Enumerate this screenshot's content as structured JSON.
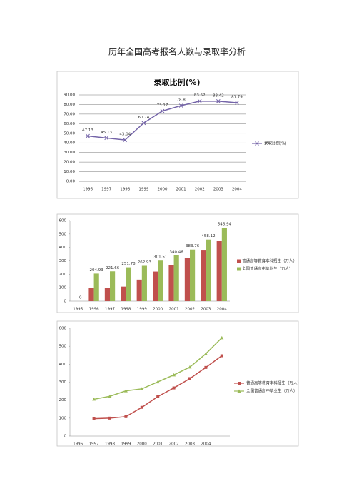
{
  "title": "历年全国高考报名人数与录取率分析",
  "chart_data": [
    {
      "type": "line",
      "title": "录取比例(%)",
      "legend": "right",
      "categories": [
        "1996",
        "1997",
        "1998",
        "1999",
        "2000",
        "2001",
        "2002",
        "2003",
        "2004"
      ],
      "series": [
        {
          "name": "录取比例(%)",
          "color": "#7464a8",
          "marker": "x",
          "labels": true,
          "values": [
            47.13,
            45.13,
            43.04,
            60.74,
            73.17,
            78.8,
            83.52,
            83.42,
            81.79
          ]
        }
      ],
      "ylim": [
        0,
        90
      ],
      "grid": true,
      "yticks": [
        {
          "value": 0,
          "label": "0.00"
        },
        {
          "value": 10,
          "label": "10.00"
        },
        {
          "value": 20,
          "label": "20.00"
        },
        {
          "value": 30,
          "label": "30.00"
        },
        {
          "value": 40,
          "label": "40.00"
        },
        {
          "value": 50,
          "label": "50.00"
        },
        {
          "value": 60,
          "label": "60.00"
        },
        {
          "value": 70,
          "label": "70.00"
        },
        {
          "value": 80,
          "label": "80.00"
        },
        {
          "value": 90,
          "label": "90.00"
        }
      ]
    },
    {
      "type": "bar",
      "legend": "right",
      "categories": [
        "1995",
        "1996",
        "1997",
        "1998",
        "1999",
        "2000",
        "2001",
        "2002",
        "2003",
        "2004"
      ],
      "series": [
        {
          "name": "普通高等教育本科招生（万人）",
          "color": "#c0504d",
          "values": [
            null,
            97,
            100,
            108,
            160,
            220,
            268,
            320,
            382,
            447
          ]
        },
        {
          "name": "全国普通高中毕业生（万人）",
          "color": "#9bbb59",
          "labels": true,
          "values": [
            0,
            204.93,
            221.66,
            251.78,
            262.93,
            301.51,
            340.46,
            383.76,
            458.12,
            546.94
          ]
        }
      ],
      "ylim": [
        0,
        600
      ],
      "yticks": [
        0,
        100,
        200,
        300,
        400,
        500,
        600
      ],
      "grid": false
    },
    {
      "type": "line",
      "legend": "right",
      "categories": [
        "1996",
        "1997",
        "1998",
        "1999",
        "2000",
        "2001",
        "2002",
        "2003",
        "2004",
        null
      ],
      "series": [
        {
          "name": "普通高等教育本科招生（万人）",
          "color": "#c0504d",
          "marker": "square",
          "values": [
            null,
            97,
            100,
            108,
            160,
            220,
            268,
            320,
            382,
            447
          ]
        },
        {
          "name": "全国普通高中毕业生（万人）",
          "color": "#9bbb59",
          "marker": "triangle",
          "values": [
            null,
            204.93,
            221.66,
            251.78,
            262.93,
            301.51,
            340.46,
            383.76,
            458.12,
            546.94
          ]
        }
      ],
      "ylim": [
        0,
        600
      ],
      "yticks": [
        0,
        100,
        200,
        300,
        400,
        500,
        600
      ],
      "grid": false
    }
  ]
}
